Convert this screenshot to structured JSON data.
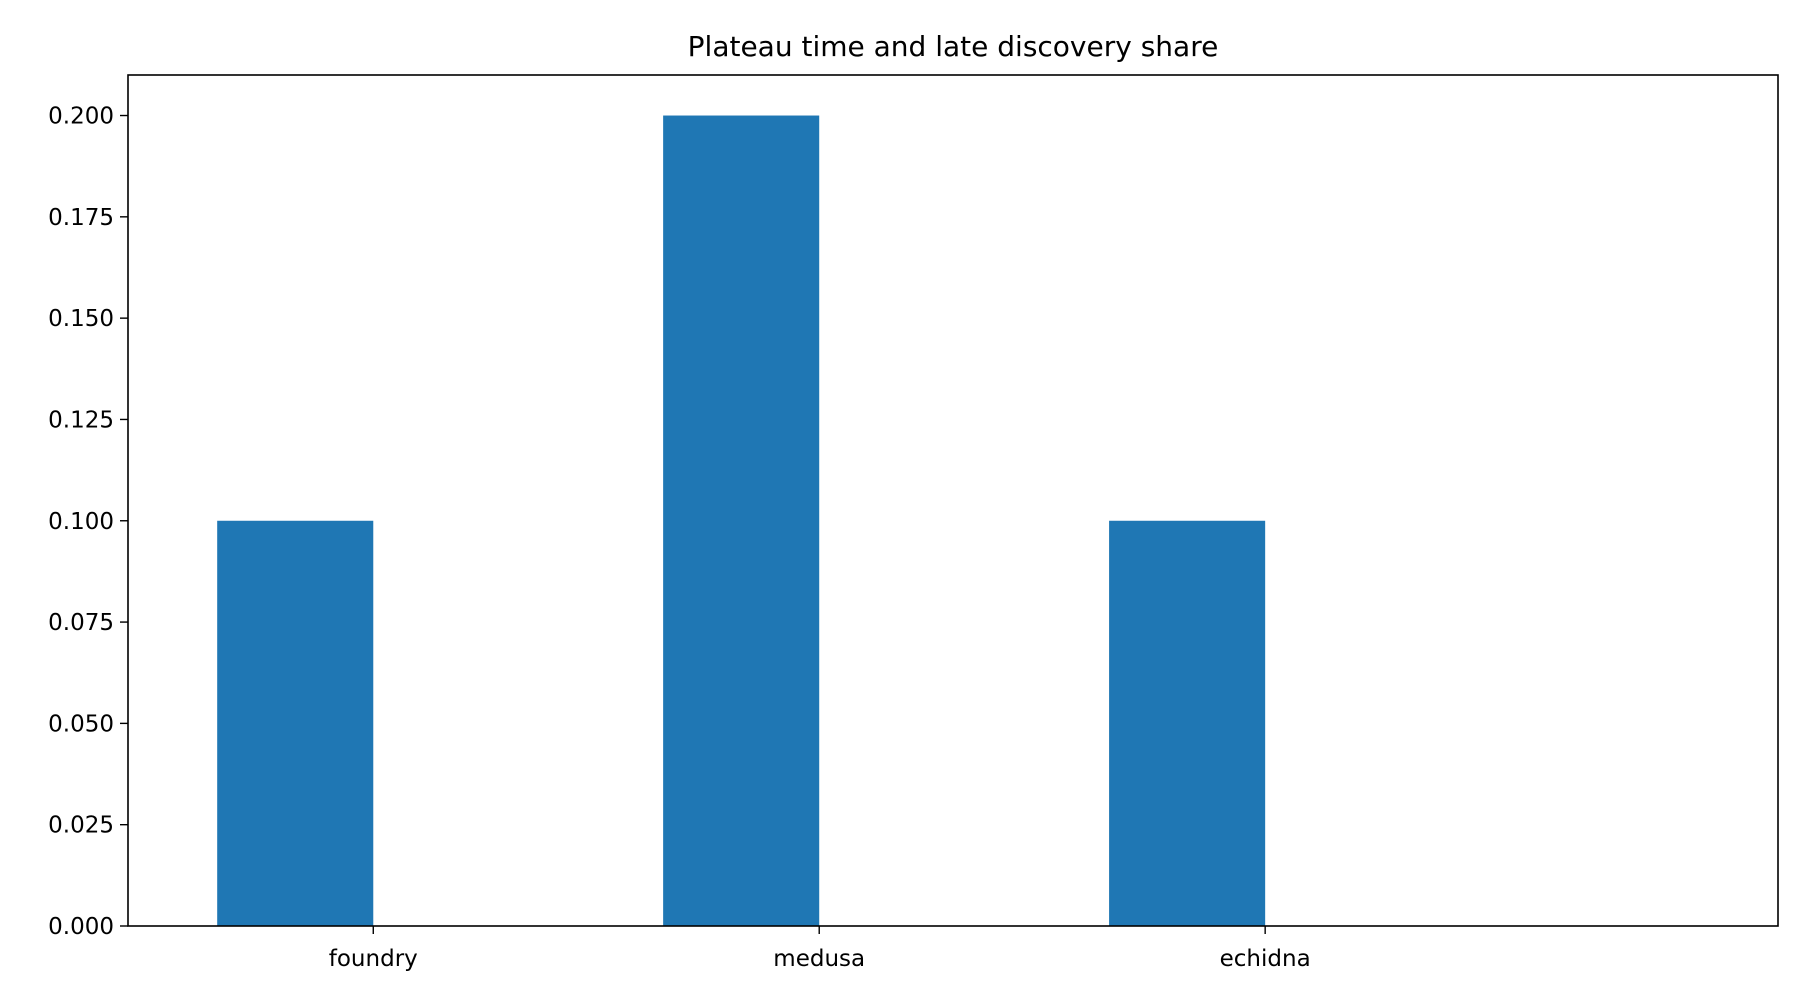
{
  "chart_data": {
    "type": "bar",
    "title": "Plateau time and late discovery share",
    "xlabel": "",
    "ylabel": "",
    "categories": [
      "foundry",
      "medusa",
      "echidna"
    ],
    "series": [
      {
        "values": [
          0.1,
          0.2,
          0.1
        ],
        "color": "#1f77b4"
      }
    ],
    "ylim": [
      0,
      0.21
    ],
    "yticks": [
      0.0,
      0.025,
      0.05,
      0.075,
      0.1,
      0.125,
      0.15,
      0.175,
      0.2
    ],
    "ytick_labels": [
      "0.000",
      "0.025",
      "0.050",
      "0.075",
      "0.100",
      "0.125",
      "0.150",
      "0.175",
      "0.200"
    ],
    "grid": false,
    "legend": "none"
  }
}
